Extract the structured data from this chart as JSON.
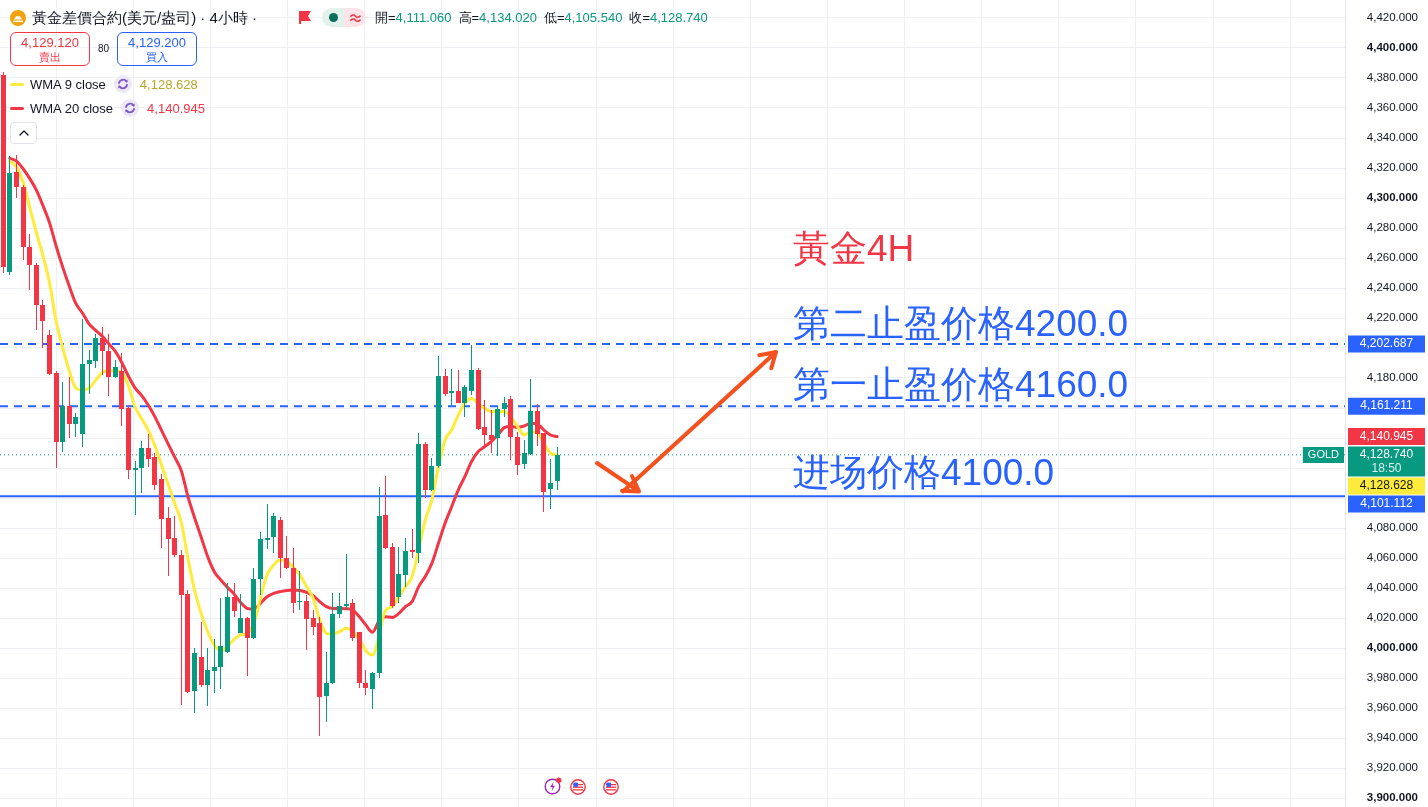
{
  "chart_data": {
    "type": "candlestick",
    "title": "黃金差價合約(美元/盎司) · 4小時 ·",
    "categories": [
      null,
      null,
      null,
      null,
      null,
      null,
      null,
      null,
      null,
      null,
      null,
      null,
      null,
      null,
      null,
      null,
      null,
      null,
      null,
      null,
      null,
      null,
      null,
      null,
      null,
      null,
      null,
      null,
      null,
      null,
      null,
      null,
      null,
      null,
      null,
      null,
      null,
      null,
      null,
      null,
      null,
      null,
      null,
      null,
      null,
      null,
      null,
      null,
      null,
      null,
      null,
      null,
      null,
      null,
      null,
      null,
      null,
      null,
      null,
      null,
      null,
      null,
      null,
      null,
      null,
      null,
      null,
      null,
      null,
      null,
      null,
      null,
      null,
      null,
      null,
      null,
      null,
      null,
      null,
      null,
      null,
      null,
      null,
      null,
      null,
      null,
      null,
      null,
      null,
      null,
      null,
      null,
      null,
      null,
      null,
      null,
      null,
      null,
      null,
      null,
      null,
      null,
      null,
      null,
      null,
      null,
      null,
      null,
      null,
      null,
      null,
      null,
      null,
      null,
      null,
      null,
      null,
      null,
      null,
      null,
      null,
      null,
      null,
      null,
      null,
      null,
      null,
      null,
      null,
      null,
      null,
      null,
      null,
      null,
      null,
      null,
      null,
      null,
      null,
      null,
      null,
      null,
      null,
      null,
      null,
      null,
      null,
      null,
      null,
      null,
      null,
      null,
      null,
      null,
      null,
      null,
      null,
      null,
      null,
      null,
      null,
      null,
      null,
      null,
      null,
      null,
      null,
      null,
      null,
      null,
      null,
      null,
      null,
      null,
      null,
      null,
      null,
      null,
      null,
      null,
      null,
      null,
      null,
      null,
      null,
      null,
      null,
      null,
      null,
      null,
      null,
      null,
      null,
      null,
      null,
      null,
      null,
      null,
      null,
      null,
      null,
      null,
      null,
      null
    ],
    "ohlc": [
      [
        4382,
        4384,
        4250,
        4254
      ],
      [
        4250.7,
        4328,
        4249,
        4316.4
      ],
      [
        4317,
        4329,
        4300.2,
        4307.2
      ],
      [
        4307.2,
        4308.5,
        4258.7,
        4267.4
      ],
      [
        4267.4,
        4275.9,
        4238.7,
        4255.4
      ],
      [
        4255.4,
        4256.6,
        4212.3,
        4228.4
      ],
      [
        4228.4,
        4232,
        4199.7,
        4217.7
      ],
      [
        4208.7,
        4212.3,
        4181.8,
        4182.8
      ],
      [
        4183.6,
        4184.5,
        4120.2,
        4137.4
      ],
      [
        4137.4,
        4177.2,
        4131,
        4161.2
      ],
      [
        4161.2,
        4181,
        4140,
        4149.5
      ],
      [
        4149.5,
        4156.6,
        4140.5,
        4154.1
      ],
      [
        4142.5,
        4219.5,
        4134.3,
        4189.2
      ],
      [
        4189.2,
        4199,
        4169.5,
        4192
      ],
      [
        4191.3,
        4209.2,
        4186.9,
        4206.6
      ],
      [
        4206.6,
        4213.8,
        4182.3,
        4197.7
      ],
      [
        4198,
        4209,
        4168.2,
        4181
      ],
      [
        4181,
        4191.8,
        4179.7,
        4187.4
      ],
      [
        4184.9,
        4196.4,
        4147.7,
        4159.2
      ],
      [
        4160,
        4161.8,
        4112.5,
        4119
      ],
      [
        4119,
        4124.6,
        4088.7,
        4120.2
      ],
      [
        4120.2,
        4138,
        4103.3,
        4133.6
      ],
      [
        4133.6,
        4142.5,
        4120.7,
        4125.9
      ],
      [
        4127.2,
        4129.7,
        4105.4,
        4108.4
      ],
      [
        4112.5,
        4116.1,
        4066.4,
        4086.1
      ],
      [
        4086.9,
        4093.8,
        4047.7,
        4072.8
      ],
      [
        4073.3,
        4087.9,
        4061,
        4061.8
      ],
      [
        4061.8,
        4065.6,
        3961.8,
        4035.6
      ],
      [
        4036,
        4038.7,
        3970,
        3971
      ],
      [
        3971.6,
        4000.2,
        3957,
        3997
      ],
      [
        3994.2,
        4017.6,
        3974,
        3975.6
      ],
      [
        3975.6,
        4000,
        3961.3,
        3985.3
      ],
      [
        3984.9,
        4005.8,
        3970.2,
        3987.1
      ],
      [
        3987.1,
        4033.1,
        3972.7,
        4001.3
      ],
      [
        3997.6,
        4043.1,
        3997,
        4034.2
      ],
      [
        4034.2,
        4043.1,
        4020.9,
        4024.9
      ],
      [
        4010.2,
        4036,
        4010,
        4020.2
      ],
      [
        4020.2,
        4020.9,
        3981.3,
        4006.9
      ],
      [
        4006.9,
        4053.1,
        4005.8,
        4046
      ],
      [
        4045.8,
        4077.6,
        4035.3,
        4072.4
      ],
      [
        4071.8,
        4096,
        4066.2,
        4073.3
      ],
      [
        4073.8,
        4090.2,
        4063.6,
        4088
      ],
      [
        4085.3,
        4087.6,
        4046.9,
        4060.2
      ],
      [
        4060,
        4074.7,
        4052.5,
        4053.1
      ],
      [
        4053.1,
        4066.4,
        4023.6,
        4030.2
      ],
      [
        4030.7,
        4051.6,
        4025.3,
        4031.6
      ],
      [
        4031.3,
        4035.3,
        3998.7,
        4019.6
      ],
      [
        4020,
        4025.3,
        4008.7,
        4014.2
      ],
      [
        4016.4,
        4020.9,
        3941.3,
        3967.6
      ],
      [
        3968,
        3997.6,
        3950.9,
        3976.9
      ],
      [
        3976.4,
        4036.4,
        3976,
        4022.4
      ],
      [
        4022.4,
        4036.4,
        4019.8,
        4028.2
      ],
      [
        4028.2,
        4062.7,
        4025.3,
        4029.1
      ],
      [
        4029.8,
        4032.7,
        4004.7,
        4006.4
      ],
      [
        4010.4,
        4011,
        3973.1,
        3976.4
      ],
      [
        3976.9,
        3985.3,
        3968.7,
        3973.1
      ],
      [
        3972.4,
        3984,
        3959.1,
        3983.6
      ],
      [
        3983.1,
        4107.4,
        3980.2,
        4088
      ],
      [
        4088.7,
        4114.9,
        4066,
        4066.4
      ],
      [
        4067.1,
        4069.8,
        4026.4,
        4028
      ],
      [
        4033.8,
        4067.1,
        4029.8,
        4049.3
      ],
      [
        4048.7,
        4073.1,
        4040.4,
        4064.7
      ],
      [
        4065.3,
        4079.1,
        4059.8,
        4063.8
      ],
      [
        4063.6,
        4143.1,
        4056.4,
        4136
      ],
      [
        4136,
        4137.6,
        4099.8,
        4105.3
      ],
      [
        4105.3,
        4126.4,
        4104.7,
        4121.3
      ],
      [
        4121.3,
        4194.7,
        4120.2,
        4181.3
      ],
      [
        4181.3,
        4185.8,
        4168.2,
        4169.3
      ],
      [
        4169.8,
        4186,
        4160.4,
        4171.3
      ],
      [
        4171.3,
        4185.3,
        4163.1,
        4163.6
      ],
      [
        4163.6,
        4175.3,
        4154.2,
        4174.2
      ],
      [
        4171.6,
        4202.2,
        4168.7,
        4185.3
      ],
      [
        4185.3,
        4186.9,
        4145.5,
        4146
      ],
      [
        4147.1,
        4165.3,
        4135.3,
        4142
      ],
      [
        4142,
        4158.7,
        4130.2,
        4138.7
      ],
      [
        4139.8,
        4160.9,
        4128,
        4159.6
      ],
      [
        4159.1,
        4167.1,
        4154.2,
        4163.6
      ],
      [
        4166,
        4168,
        4125.3,
        4140.9
      ],
      [
        4140.9,
        4144.2,
        4115.3,
        4122
      ],
      [
        4122.7,
        4138.7,
        4119.1,
        4129.8
      ],
      [
        4129.3,
        4179.3,
        4129,
        4158
      ],
      [
        4158,
        4162.7,
        4134.7,
        4142.7
      ],
      [
        4143.1,
        4143.5,
        4090.9,
        4104
      ],
      [
        4105.8,
        4125.8,
        4092.7,
        4109.8
      ],
      [
        4111.06,
        4134.02,
        4105.54,
        4128.74
      ],
      null,
      null,
      null,
      null,
      null,
      null,
      null,
      null,
      null,
      null,
      null,
      null,
      null,
      null,
      null,
      null,
      null,
      null,
      null,
      null,
      null,
      null,
      null,
      null,
      null,
      null,
      null,
      null,
      null,
      null,
      null,
      null,
      null,
      null,
      null,
      null,
      null,
      null,
      null,
      null,
      null,
      null,
      null,
      null,
      null,
      null,
      null,
      null,
      null,
      null,
      null,
      null,
      null,
      null,
      null,
      null,
      null,
      null,
      null,
      null,
      null,
      null,
      null,
      null,
      null,
      null,
      null,
      null,
      null,
      null,
      null,
      null,
      null,
      null,
      null,
      null,
      null,
      null,
      null,
      null,
      null,
      null,
      null,
      null,
      null,
      null,
      null,
      null,
      null,
      null,
      null,
      null,
      null,
      null,
      null,
      null,
      null,
      null,
      null,
      null,
      null,
      null,
      null,
      null,
      null,
      null,
      null,
      null,
      null,
      null,
      null,
      null,
      null,
      null,
      null,
      null,
      null,
      null,
      null
    ],
    "colors": [
      "#f23645",
      "#089981",
      "#f23645",
      "#f23645",
      "#f23645",
      "#f23645",
      "#f23645",
      "#f23645",
      "#f23645",
      "#089981",
      "#f23645",
      "#089981",
      "#089981",
      "#089981",
      "#089981",
      "#f23645",
      "#f23645",
      "#089981",
      "#f23645",
      "#f23645",
      "#089981",
      "#089981",
      "#f23645",
      "#f23645",
      "#f23645",
      "#f23645",
      "#f23645",
      "#f23645",
      "#f23645",
      "#089981",
      "#f23645",
      "#089981",
      "#089981",
      "#089981",
      "#089981",
      "#f23645",
      "#089981",
      "#f23645",
      "#089981",
      "#089981",
      "#089981",
      "#089981",
      "#f23645",
      "#f23645",
      "#f23645",
      "#089981",
      "#f23645",
      "#f23645",
      "#f23645",
      "#089981",
      "#089981",
      "#089981",
      "#089981",
      "#f23645",
      "#f23645",
      "#f23645",
      "#089981",
      "#089981",
      "#f23645",
      "#f23645",
      "#089981",
      "#089981",
      "#f23645",
      "#089981",
      "#f23645",
      "#089981",
      "#089981",
      "#f23645",
      "#089981",
      "#f23645",
      "#089981",
      "#089981",
      "#f23645",
      "#f23645",
      "#f23645",
      "#089981",
      "#089981",
      "#f23645",
      "#f23645",
      "#089981",
      "#089981",
      "#f23645",
      "#f23645",
      "#089981",
      "#089981",
      null,
      null,
      null,
      null,
      null,
      null,
      null,
      null,
      null,
      null,
      null,
      null,
      null,
      null,
      null,
      null,
      null,
      null,
      null,
      null,
      null,
      null,
      null,
      null,
      null,
      null,
      null,
      null,
      null,
      null,
      null,
      null,
      null,
      null,
      null,
      null,
      null,
      null,
      null,
      null,
      null,
      null,
      null,
      null,
      null,
      null,
      null,
      null,
      null,
      null,
      null,
      null,
      null,
      null,
      null,
      null,
      null,
      null,
      null,
      null,
      null,
      null,
      null,
      null,
      null,
      null,
      null,
      null,
      null,
      null,
      null,
      null,
      null,
      null,
      null,
      null,
      null,
      null,
      null,
      null,
      null,
      null,
      null,
      null,
      null,
      null,
      null,
      null,
      null,
      null,
      null,
      null,
      null,
      null,
      null,
      null,
      null,
      null,
      null,
      null,
      null,
      null,
      null,
      null,
      null,
      null,
      null,
      null,
      null,
      null,
      null,
      null,
      null,
      null,
      null,
      null,
      null,
      null,
      null
    ],
    "series": [
      {
        "name": "WMA 9 close",
        "type": "line",
        "color": "#ffeb3b",
        "values": [
          null,
          4324.6,
          4320.7,
          4310.5,
          4293.8,
          4277.2,
          4261.8,
          4243.8,
          4218.2,
          4200.2,
          4184.9,
          4173.3,
          4172.0,
          4173.3,
          4178.4,
          4183.6,
          4184.9,
          4184.9,
          4183.6,
          4174.6,
          4160.5,
          4152.8,
          4145.1,
          4134.8,
          4122.0,
          4109.2,
          4096.4,
          4083.6,
          4060.0,
          4038.7,
          4023.1,
          4010.9,
          4002.0,
          3998.2,
          4000.9,
          4005.8,
          4008.7,
          4009.8,
          4016.4,
          4033.1,
          4048.7,
          4055.3,
          4058.7,
          4057.6,
          4053.8,
          4048.7,
          4040.9,
          4033.1,
          4018.7,
          4009.8,
          4009.3,
          4010.9,
          4013.1,
          4010.9,
          4005.8,
          3998.2,
          3995.3,
          null,
          4025.3,
          4027.6,
          4034.2,
          4040.9,
          4047.6,
          null,
          4085.3,
          4098.7,
          4120.9,
          4138.7,
          4145.3,
          4155.3,
          4163.1,
          4166.4,
          4163.1,
          4159.8,
          4157.6,
          4157.6,
          4157.6,
          4153.8,
          4147.6,
          4142.0,
          4144.2,
          4143.1,
          4136.4,
          4129.8,
          4128.628,
          null,
          null,
          null,
          null,
          null,
          null,
          null,
          null,
          null,
          null,
          null,
          null,
          null,
          null,
          null,
          null,
          null,
          null,
          null,
          null,
          null,
          null,
          null,
          null,
          null,
          null,
          null,
          null,
          null,
          null,
          null,
          null,
          null,
          null,
          null,
          null,
          null,
          null,
          null,
          null,
          null,
          null,
          null,
          null,
          null,
          null,
          null,
          null,
          null,
          null,
          null,
          null,
          null,
          null,
          null,
          null,
          null,
          null,
          null,
          null,
          null,
          null,
          null,
          null,
          null,
          null,
          null,
          null,
          null,
          null,
          null,
          null,
          null,
          null,
          null,
          null,
          null,
          null,
          null,
          null,
          null,
          null,
          null,
          null,
          null,
          null,
          null,
          null,
          null,
          null,
          null,
          null,
          null,
          null,
          null,
          null,
          null,
          null,
          null,
          null,
          null,
          null,
          null,
          null,
          null,
          null,
          null,
          null,
          null,
          null,
          null,
          null,
          null,
          null,
          null,
          null,
          null,
          null,
          null
        ]
      },
      {
        "name": "WMA 20 close",
        "type": "line",
        "color": "#f23645",
        "values": [
          null,
          4326.4,
          4324.6,
          4319.5,
          4313.1,
          4305.4,
          4295.1,
          4283.6,
          4268.2,
          4254.1,
          4241.3,
          4229.7,
          4223.3,
          4216.1,
          4211.8,
          4207.9,
          4202.8,
          4197.7,
          4190.0,
          4181.0,
          4173.3,
          4168.2,
          4161.8,
          4154.1,
          4145.1,
          4136.1,
          4127.2,
          4118.2,
          4101.0,
          4087.0,
          4074.0,
          4060.9,
          4050.9,
          4045.3,
          4040.4,
          4036.0,
          4030.4,
          4026.4,
          4025.8,
          4029.8,
          4034.2,
          4036.4,
          4037.6,
          4038.4,
          4038.7,
          4038.4,
          4037.1,
          4034.9,
          4030.9,
          4027.6,
          4026.4,
          4026.4,
          4026.2,
          4025.3,
          4020.9,
          4015.3,
          4010.5,
          4018.2,
          4020.9,
          4020.4,
          4023.1,
          4027.6,
          4030.9,
          4040.9,
          4047.6,
          4056.4,
          4069.8,
          4083.1,
          4094.2,
          4105.3,
          4114.2,
          4124.2,
          4130.9,
          4134.2,
          4137.6,
          4142.0,
          4146.9,
          4147.6,
          4147.1,
          4148.0,
          4149.8,
          4149.3,
          4145.3,
          4142.0,
          4140.945,
          null,
          null,
          null,
          null,
          null,
          null,
          null,
          null,
          null,
          null,
          null,
          null,
          null,
          null,
          null,
          null,
          null,
          null,
          null,
          null,
          null,
          null,
          null,
          null,
          null,
          null,
          null,
          null,
          null,
          null,
          null,
          null,
          null,
          null,
          null,
          null,
          null,
          null,
          null,
          null,
          null,
          null,
          null,
          null,
          null,
          null,
          null,
          null,
          null,
          null,
          null,
          null,
          null,
          null,
          null,
          null,
          null,
          null,
          null,
          null,
          null,
          null,
          null,
          null,
          null,
          null,
          null,
          null,
          null,
          null,
          null,
          null,
          null,
          null,
          null,
          null,
          null,
          null,
          null,
          null,
          null,
          null,
          null,
          null,
          null,
          null,
          null,
          null,
          null,
          null,
          null,
          null,
          null,
          null,
          null,
          null,
          null,
          null,
          null,
          null,
          null,
          null,
          null,
          null,
          null,
          null,
          null,
          null,
          null,
          null,
          null,
          null,
          null,
          null,
          null,
          null,
          null,
          null,
          null
        ]
      }
    ],
    "ylim": [
      3894,
      4432
    ],
    "yticks": [
      {
        "value": 3900,
        "label": "3,900.000"
      },
      {
        "value": 3920,
        "label": "3,920.000"
      },
      {
        "value": 3940,
        "label": "3,940.000"
      },
      {
        "value": 3960,
        "label": "3,960.000"
      },
      {
        "value": 3980,
        "label": "3,980.000"
      },
      {
        "value": 4000,
        "label": "4,000.000"
      },
      {
        "value": 4020,
        "label": "4,020.000"
      },
      {
        "value": 4040,
        "label": "4,040.000"
      },
      {
        "value": 4060,
        "label": "4,060.000"
      },
      {
        "value": 4080,
        "label": "4,080.000"
      },
      {
        "value": 4100,
        "label": null
      },
      {
        "value": 4120,
        "label": null
      },
      {
        "value": 4140,
        "label": null
      },
      {
        "value": 4160,
        "label": null
      },
      {
        "value": 4180,
        "label": "4,180.000"
      },
      {
        "value": 4200,
        "label": null
      },
      {
        "value": 4220,
        "label": "4,220.000"
      },
      {
        "value": 4240,
        "label": "4,240.000"
      },
      {
        "value": 4260,
        "label": "4,260.000"
      },
      {
        "value": 4280,
        "label": "4,280.000"
      },
      {
        "value": 4300,
        "label": "4,300.000"
      },
      {
        "value": 4320,
        "label": "4,320.000"
      },
      {
        "value": 4340,
        "label": "4,340.000"
      },
      {
        "value": 4360,
        "label": "4,360.000"
      },
      {
        "value": 4380,
        "label": "4,380.000"
      },
      {
        "value": 4400,
        "label": "4,400.000"
      },
      {
        "value": 4420,
        "label": "4,420.000"
      }
    ],
    "tick_labels": "y",
    "grid": true,
    "legend": "top left",
    "ref_lines": [
      {
        "axis": "y",
        "value": 4202.687,
        "label": "4,202.687",
        "color": "#2962ff",
        "line_style": "dashed"
      },
      {
        "axis": "y",
        "value": 4161.211,
        "label": "4,161.211",
        "color": "#2962ff",
        "line_style": "dashed"
      },
      {
        "axis": "y",
        "value": 4101.112,
        "label": "4,101.112",
        "color": "#2962ff",
        "line_style": "solid"
      },
      {
        "axis": "y",
        "value": 4128.74,
        "label": "4,128.740",
        "color": "#089981",
        "line_style": "dotted"
      }
    ],
    "annotations": [
      "開=4,111.060",
      "高=4,134.020",
      "低=4,105.540",
      "收=4,128.740",
      "4,129.120",
      "賣出",
      "80",
      "4,129.200",
      "買入",
      "4,128.628",
      "4,140.945",
      "黃金4H",
      "第二止盈价格4200.0",
      "第一止盈价格4160.0",
      "进场价格4100.0",
      "4,140.945",
      "4,128.628",
      "18:50",
      "GOLD"
    ]
  }
}
